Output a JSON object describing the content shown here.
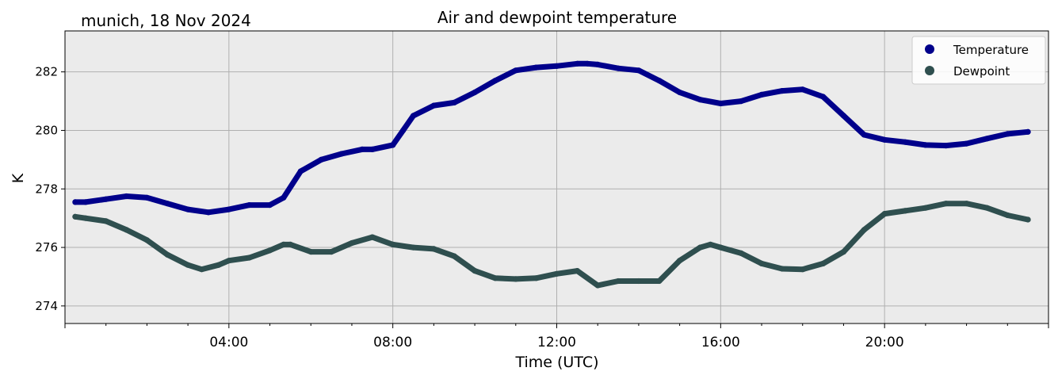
{
  "corner_label": "munich, 18 Nov 2024",
  "chart_data": {
    "type": "line",
    "title": "Air and dewpoint temperature",
    "xlabel": "Time (UTC)",
    "ylabel": "K",
    "xlim": [
      "00:00",
      "24:00"
    ],
    "ylim": [
      273.4,
      283.4
    ],
    "xticks": [
      "04:00",
      "08:00",
      "12:00",
      "16:00",
      "20:00"
    ],
    "yticks": [
      274,
      276,
      278,
      280,
      282
    ],
    "grid": true,
    "background": "#ebebeb",
    "legend_position": "top-right",
    "series": [
      {
        "name": "Temperature",
        "color": "#00008b",
        "raw_color": "#6e9c9c",
        "x": [
          "00:15",
          "00:30",
          "01:00",
          "01:30",
          "02:00",
          "02:30",
          "03:00",
          "03:30",
          "04:00",
          "04:30",
          "05:00",
          "05:20",
          "05:45",
          "06:15",
          "06:45",
          "07:15",
          "07:30",
          "08:00",
          "08:15",
          "08:30",
          "09:00",
          "09:30",
          "10:00",
          "10:30",
          "11:00",
          "11:30",
          "12:00",
          "12:30",
          "12:45",
          "13:00",
          "13:30",
          "14:00",
          "14:30",
          "15:00",
          "15:30",
          "16:00",
          "16:30",
          "17:00",
          "17:30",
          "18:00",
          "18:30",
          "19:00",
          "19:30",
          "20:00",
          "20:30",
          "21:00",
          "21:30",
          "22:00",
          "22:30",
          "23:00",
          "23:30"
        ],
        "values": [
          277.55,
          277.55,
          277.65,
          277.75,
          277.7,
          277.5,
          277.3,
          277.2,
          277.3,
          277.45,
          277.45,
          277.7,
          278.6,
          279.0,
          279.2,
          279.35,
          279.35,
          279.5,
          280.0,
          280.5,
          280.85,
          280.95,
          281.3,
          281.7,
          282.05,
          282.15,
          282.2,
          282.28,
          282.28,
          282.25,
          282.12,
          282.05,
          281.7,
          281.3,
          281.05,
          280.92,
          281.0,
          281.22,
          281.35,
          281.4,
          281.15,
          280.5,
          279.85,
          279.68,
          279.6,
          279.5,
          279.48,
          279.55,
          279.72,
          279.88,
          279.95
        ]
      },
      {
        "name": "Dewpoint",
        "color": "#2f4f4f",
        "raw_color": "#2196f3",
        "x": [
          "00:15",
          "00:30",
          "01:00",
          "01:30",
          "02:00",
          "02:30",
          "03:00",
          "03:20",
          "03:45",
          "04:00",
          "04:30",
          "05:00",
          "05:20",
          "05:30",
          "06:00",
          "06:30",
          "07:00",
          "07:30",
          "08:00",
          "08:30",
          "09:00",
          "09:30",
          "10:00",
          "10:30",
          "11:00",
          "11:30",
          "12:00",
          "12:30",
          "13:00",
          "13:30",
          "14:00",
          "14:30",
          "15:00",
          "15:30",
          "15:45",
          "16:00",
          "16:30",
          "17:00",
          "17:30",
          "18:00",
          "18:30",
          "19:00",
          "19:30",
          "20:00",
          "20:30",
          "21:00",
          "21:30",
          "22:00",
          "22:30",
          "23:00",
          "23:30"
        ],
        "values": [
          277.05,
          277.0,
          276.9,
          276.6,
          276.25,
          275.75,
          275.4,
          275.25,
          275.4,
          275.55,
          275.65,
          275.9,
          276.1,
          276.1,
          275.85,
          275.85,
          276.15,
          276.35,
          276.1,
          276.0,
          275.95,
          275.7,
          275.2,
          274.95,
          274.92,
          274.95,
          275.1,
          275.2,
          274.7,
          274.85,
          274.85,
          274.85,
          275.55,
          276.0,
          276.1,
          276.0,
          275.8,
          275.45,
          275.27,
          275.25,
          275.45,
          275.85,
          276.6,
          277.15,
          277.25,
          277.35,
          277.5,
          277.5,
          277.35,
          277.1,
          276.95
        ]
      }
    ]
  }
}
